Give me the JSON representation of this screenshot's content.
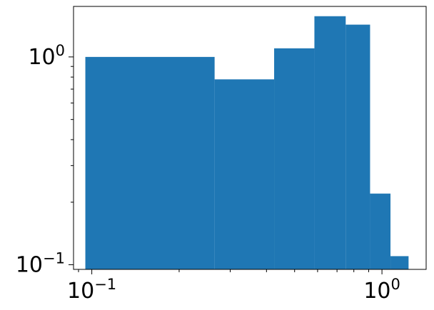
{
  "chart_data": {
    "type": "bar",
    "subtype": "histogram",
    "title": "",
    "xlabel": "",
    "ylabel": "",
    "xscale": "log",
    "yscale": "log",
    "xlim": [
      0.0865,
      1.42
    ],
    "ylim": [
      0.095,
      1.75
    ],
    "grid": false,
    "legend": "none",
    "bar_color": "#1f77b4",
    "bins": [
      {
        "left": 0.095,
        "right": 0.265,
        "value": 1.0
      },
      {
        "left": 0.265,
        "right": 0.425,
        "value": 0.78
      },
      {
        "left": 0.425,
        "right": 0.585,
        "value": 1.1
      },
      {
        "left": 0.585,
        "right": 0.75,
        "value": 1.57
      },
      {
        "left": 0.75,
        "right": 0.91,
        "value": 1.43
      },
      {
        "left": 0.91,
        "right": 1.07,
        "value": 0.22
      },
      {
        "left": 1.07,
        "right": 1.235,
        "value": 0.11
      }
    ],
    "x_ticks": [
      {
        "value": 0.1,
        "base": "10",
        "exp": "−1"
      },
      {
        "value": 1.0,
        "base": "10",
        "exp": "0"
      }
    ],
    "y_ticks": [
      {
        "value": 0.1,
        "base": "10",
        "exp": "−1"
      },
      {
        "value": 1.0,
        "base": "10",
        "exp": "0"
      }
    ]
  }
}
